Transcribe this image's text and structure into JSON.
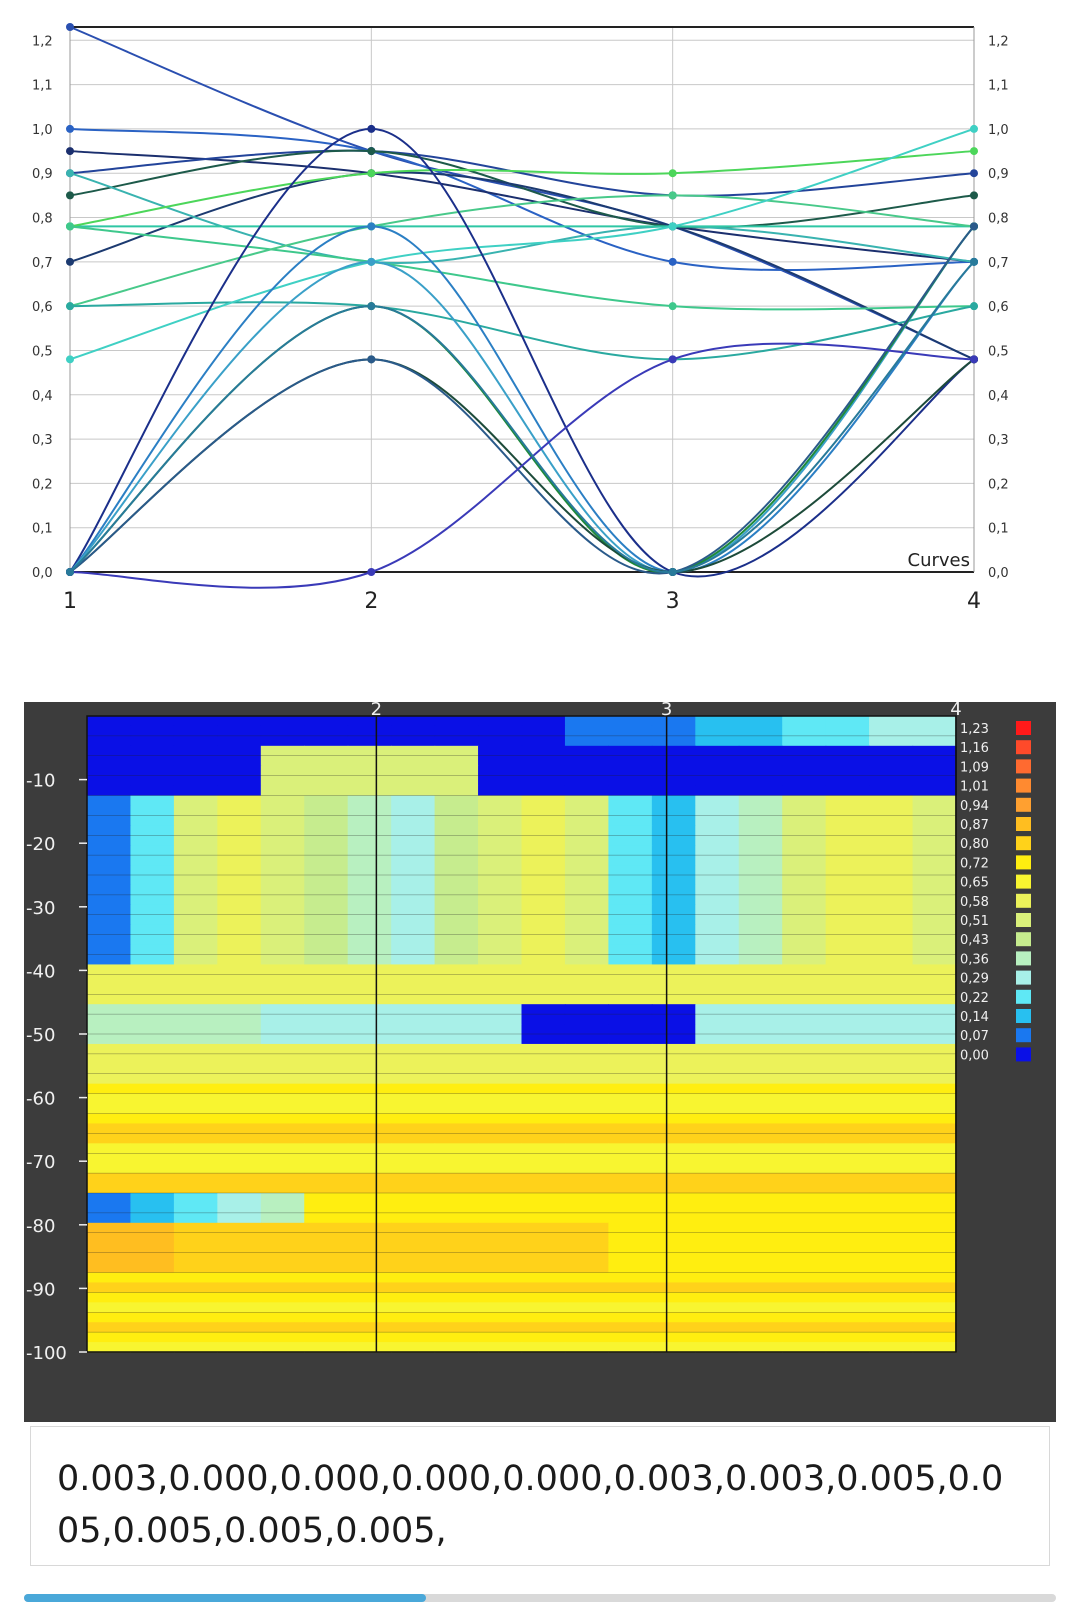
{
  "line_chart": {
    "chart_data": {
      "type": "line",
      "x": [
        1,
        2,
        3,
        4
      ],
      "xticks": [
        "1",
        "2",
        "3",
        "4"
      ],
      "yticks": [
        "0,0",
        "0,1",
        "0,2",
        "0,3",
        "0,4",
        "0,5",
        "0,6",
        "0,7",
        "0,8",
        "0,9",
        "1,0",
        "1,1",
        "1,2"
      ],
      "ylim": [
        0,
        1.23
      ],
      "annotation": "Curves",
      "grid": true,
      "series": [
        {
          "values": [
            1.23,
            0.95,
            0.78,
            0.48
          ],
          "color": "#2a4fb0"
        },
        {
          "values": [
            1.0,
            0.95,
            0.7,
            0.7
          ],
          "color": "#2a62c4"
        },
        {
          "values": [
            0.95,
            0.9,
            0.78,
            0.7
          ],
          "color": "#1b2f6e"
        },
        {
          "values": [
            0.9,
            0.95,
            0.85,
            0.9
          ],
          "color": "#23449a"
        },
        {
          "values": [
            0.85,
            0.95,
            0.78,
            0.85
          ],
          "color": "#1d5a4a"
        },
        {
          "values": [
            0.7,
            0.9,
            0.78,
            0.48
          ],
          "color": "#1c3a70"
        },
        {
          "values": [
            0.9,
            0.7,
            0.78,
            0.7
          ],
          "color": "#39b3b0"
        },
        {
          "values": [
            0.78,
            0.78,
            0.78,
            0.78
          ],
          "color": "#2fc6a5"
        },
        {
          "values": [
            0.78,
            0.9,
            0.9,
            0.95
          ],
          "color": "#4cd65a"
        },
        {
          "values": [
            0.78,
            0.7,
            0.6,
            0.6
          ],
          "color": "#3ec88c"
        },
        {
          "values": [
            0.6,
            0.78,
            0.85,
            0.78
          ],
          "color": "#48c98a"
        },
        {
          "values": [
            0.6,
            0.6,
            0.48,
            0.6
          ],
          "color": "#2aa9a0"
        },
        {
          "values": [
            0.48,
            0.7,
            0.78,
            1.0
          ],
          "color": "#3fd0c4"
        },
        {
          "values": [
            0.0,
            1.0,
            0.0,
            0.48
          ],
          "color": "#1b2f8a"
        },
        {
          "values": [
            0.0,
            0.78,
            0.0,
            0.7
          ],
          "color": "#2b7fc4"
        },
        {
          "values": [
            0.0,
            0.7,
            0.0,
            0.78
          ],
          "color": "#3aa0c8"
        },
        {
          "values": [
            0.0,
            0.6,
            0.0,
            0.78
          ],
          "color": "#1e8a3a"
        },
        {
          "values": [
            0.0,
            0.48,
            0.0,
            0.48
          ],
          "color": "#1d4b3a"
        },
        {
          "values": [
            0.0,
            0.48,
            0.0,
            0.78
          ],
          "color": "#2a5a8a"
        },
        {
          "values": [
            0.0,
            0.0,
            0.48,
            0.48
          ],
          "color": "#3a3ab8"
        },
        {
          "values": [
            0.0,
            0.6,
            0.0,
            0.7
          ],
          "color": "#287a9a"
        }
      ]
    }
  },
  "contour_plot": {
    "chart_data": {
      "type": "heatmap",
      "xticks": [
        "2",
        "3",
        "4"
      ],
      "yticks": [
        "-10",
        "-20",
        "-30",
        "-40",
        "-50",
        "-60",
        "-70",
        "-80",
        "-90",
        "-100"
      ],
      "ylim": [
        0,
        -100
      ],
      "legend": [
        {
          "label": "1,23",
          "color": "#ff1a1a"
        },
        {
          "label": "1,16",
          "color": "#ff4a2a"
        },
        {
          "label": "1,09",
          "color": "#ff6a30"
        },
        {
          "label": "1,01",
          "color": "#ff8a30"
        },
        {
          "label": "0,94",
          "color": "#ffa030"
        },
        {
          "label": "0,87",
          "color": "#ffbe20"
        },
        {
          "label": "0,80",
          "color": "#ffd21a"
        },
        {
          "label": "0,72",
          "color": "#ffee10"
        },
        {
          "label": "0,65",
          "color": "#f8f530"
        },
        {
          "label": "0,58",
          "color": "#ecf25a"
        },
        {
          "label": "0,51",
          "color": "#daf07a"
        },
        {
          "label": "0,43",
          "color": "#c6ec8e"
        },
        {
          "label": "0,36",
          "color": "#b8f0c0"
        },
        {
          "label": "0,29",
          "color": "#a8f0e8"
        },
        {
          "label": "0,22",
          "color": "#5fe8f5"
        },
        {
          "label": "0,14",
          "color": "#28c0f0"
        },
        {
          "label": "0,07",
          "color": "#1a78f0"
        },
        {
          "label": "0,00",
          "color": "#0a10e6"
        }
      ]
    }
  },
  "output": {
    "text": "0.003,0.000,0.000,0.000,0.000,0.003,0.003,0.005,0.005,0.005,0.005,0.005,"
  },
  "progress": {
    "fraction": 0.39,
    "color": "#4aa8d9"
  }
}
